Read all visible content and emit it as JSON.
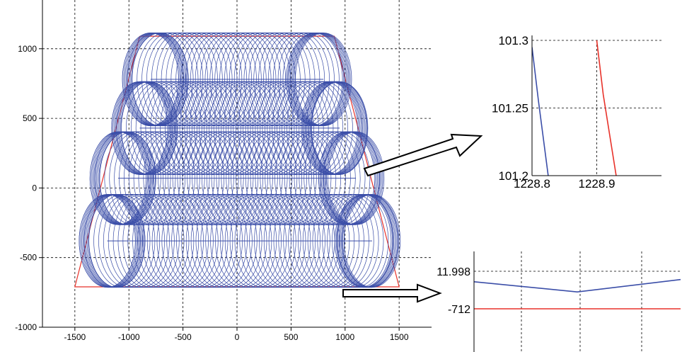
{
  "chart_data": [
    {
      "type": "line",
      "title": "",
      "xlabel": "",
      "ylabel": "",
      "xlim": [
        -1800,
        1800
      ],
      "ylim": [
        -1000,
        1350
      ],
      "xticks": [
        -1500,
        -1000,
        -500,
        0,
        500,
        1000,
        1500
      ],
      "yticks": [
        -1000,
        -500,
        0,
        500,
        1000
      ],
      "grid": true,
      "series": [
        {
          "role": "workspace-boundary",
          "color": "#e8322a",
          "points": [
            [
              -900,
              1090
            ],
            [
              900,
              1090
            ],
            [
              1500,
              -710
            ],
            [
              -1500,
              -710
            ],
            [
              -900,
              1090
            ]
          ]
        },
        {
          "role": "tool-path-circles",
          "color": "#3b4ea8",
          "radius": 290,
          "horizontal_half_axis": 260,
          "vertical_scale": 1.15,
          "passes": [
            {
              "x_from": -800,
              "x_to": 800,
              "y_center": 780
            },
            {
              "x_from": -900,
              "x_to": 950,
              "y_center": 430
            },
            {
              "x_from": -1100,
              "x_to": 1100,
              "y_center": 70
            },
            {
              "x_from": -1200,
              "x_to": 1250,
              "y_center": -380
            }
          ]
        }
      ]
    },
    {
      "type": "line",
      "title": "",
      "xlabel": "",
      "ylabel": "",
      "xlim": [
        1228.8,
        1229.0
      ],
      "ylim": [
        101.2,
        101.3
      ],
      "xticks": [
        1228.8,
        1228.9
      ],
      "yticks": [
        101.2,
        101.25,
        101.3
      ],
      "tick_labels_x": [
        "1228.8",
        "1228.9"
      ],
      "tick_labels_y": [
        "101.2",
        "101.25",
        "101.3"
      ],
      "grid": true,
      "series": [
        {
          "color": "#3b4ea8",
          "x": [
            1228.8,
            1228.81,
            1228.825
          ],
          "y": [
            101.295,
            101.255,
            101.2
          ]
        },
        {
          "color": "#e8322a",
          "x": [
            1228.9,
            1228.91,
            1228.93
          ],
          "y": [
            101.3,
            101.26,
            101.2
          ]
        }
      ]
    },
    {
      "type": "line",
      "title": "",
      "xlabel": "",
      "ylabel": "",
      "ytick_labels": [
        "11.998",
        "-712"
      ],
      "grid": true,
      "series": [
        {
          "color": "#3b4ea8",
          "x": [
            0,
            0.5,
            1
          ],
          "y": [
            0.72,
            0.45,
            0.78
          ]
        },
        {
          "color": "#e8322a",
          "x": [
            0,
            1
          ],
          "y": [
            0.0,
            0.0
          ]
        }
      ]
    }
  ],
  "tick_labels": {
    "main_x": [
      "-1500",
      "-1000",
      "-500",
      "0",
      "500",
      "1000",
      "1500"
    ],
    "main_y": [
      "1000",
      "500",
      "0",
      "-500",
      "-1000"
    ],
    "zoom_top_x": [
      "1228.8",
      "1228.9"
    ],
    "zoom_top_y": [
      "101.3",
      "101.25",
      "101.2"
    ],
    "zoom_bottom_y": [
      "11.998",
      "-712"
    ]
  }
}
